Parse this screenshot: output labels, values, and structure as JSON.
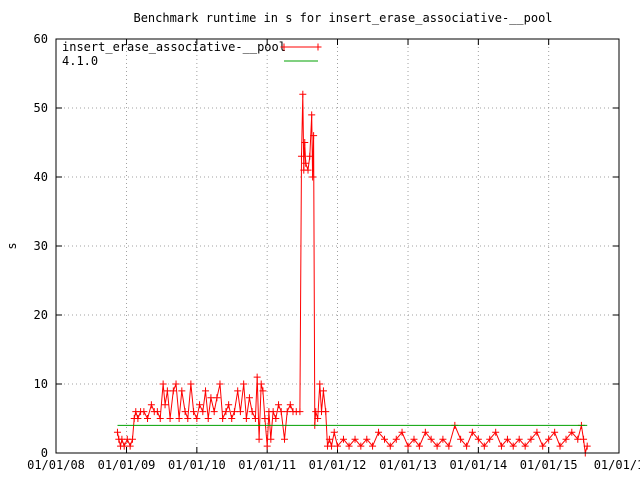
{
  "chart_data": {
    "type": "line",
    "title": "Benchmark runtime in s for insert_erase_associative-__pool",
    "xlabel": "",
    "ylabel": "s",
    "xlim": [
      "2008-01-01",
      "2016-01-01"
    ],
    "ylim": [
      0,
      60
    ],
    "y_ticks": [
      0,
      10,
      20,
      30,
      40,
      50,
      60
    ],
    "x_ticks": [
      {
        "date": "2008-01-01",
        "label": "01/01/08"
      },
      {
        "date": "2009-01-01",
        "label": "01/01/09"
      },
      {
        "date": "2010-01-01",
        "label": "01/01/10"
      },
      {
        "date": "2011-01-01",
        "label": "01/01/11"
      },
      {
        "date": "2012-01-01",
        "label": "01/01/12"
      },
      {
        "date": "2013-01-01",
        "label": "01/01/13"
      },
      {
        "date": "2014-01-01",
        "label": "01/01/14"
      },
      {
        "date": "2015-01-01",
        "label": "01/01/15"
      },
      {
        "date": "2016-01-01",
        "label": "01/01/1"
      }
    ],
    "grid": true,
    "legend_position": "top-left",
    "series": [
      {
        "name": "insert_erase_associative-__pool",
        "color": "#ff0000",
        "marker": "plus",
        "points": [
          [
            "2008-11-15",
            3
          ],
          [
            "2008-11-22",
            2
          ],
          [
            "2008-12-01",
            1
          ],
          [
            "2008-12-08",
            2
          ],
          [
            "2008-12-20",
            1
          ],
          [
            "2009-01-05",
            2
          ],
          [
            "2009-01-20",
            1
          ],
          [
            "2009-02-01",
            2
          ],
          [
            "2009-02-10",
            5
          ],
          [
            "2009-02-18",
            6
          ],
          [
            "2009-03-01",
            5
          ],
          [
            "2009-03-15",
            6
          ],
          [
            "2009-04-01",
            6
          ],
          [
            "2009-04-20",
            5
          ],
          [
            "2009-05-10",
            7
          ],
          [
            "2009-05-25",
            6
          ],
          [
            "2009-06-10",
            6
          ],
          [
            "2009-06-25",
            5
          ],
          [
            "2009-07-10",
            10
          ],
          [
            "2009-07-20",
            7
          ],
          [
            "2009-08-01",
            9
          ],
          [
            "2009-08-15",
            5
          ],
          [
            "2009-09-01",
            9
          ],
          [
            "2009-09-15",
            10
          ],
          [
            "2009-10-01",
            5
          ],
          [
            "2009-10-15",
            9
          ],
          [
            "2009-11-01",
            6
          ],
          [
            "2009-11-15",
            5
          ],
          [
            "2009-12-01",
            10
          ],
          [
            "2009-12-15",
            6
          ],
          [
            "2010-01-01",
            5
          ],
          [
            "2010-01-15",
            7
          ],
          [
            "2010-02-01",
            6
          ],
          [
            "2010-02-15",
            9
          ],
          [
            "2010-03-01",
            5
          ],
          [
            "2010-03-15",
            8
          ],
          [
            "2010-04-01",
            6
          ],
          [
            "2010-04-15",
            8
          ],
          [
            "2010-05-01",
            10
          ],
          [
            "2010-05-15",
            5
          ],
          [
            "2010-06-01",
            6
          ],
          [
            "2010-06-15",
            7
          ],
          [
            "2010-07-01",
            5
          ],
          [
            "2010-07-15",
            6
          ],
          [
            "2010-08-01",
            9
          ],
          [
            "2010-08-15",
            6
          ],
          [
            "2010-09-01",
            10
          ],
          [
            "2010-09-15",
            5
          ],
          [
            "2010-10-01",
            8
          ],
          [
            "2010-10-15",
            6
          ],
          [
            "2010-11-01",
            5
          ],
          [
            "2010-11-10",
            11
          ],
          [
            "2010-11-20",
            2
          ],
          [
            "2010-12-01",
            10
          ],
          [
            "2010-12-10",
            9
          ],
          [
            "2010-12-20",
            5
          ],
          [
            "2011-01-01",
            1
          ],
          [
            "2011-01-10",
            6
          ],
          [
            "2011-01-20",
            2
          ],
          [
            "2011-02-01",
            6
          ],
          [
            "2011-02-15",
            5
          ],
          [
            "2011-03-01",
            7
          ],
          [
            "2011-03-15",
            6
          ],
          [
            "2011-04-01",
            2
          ],
          [
            "2011-04-15",
            6
          ],
          [
            "2011-05-01",
            7
          ],
          [
            "2011-05-15",
            6
          ],
          [
            "2011-06-01",
            6
          ],
          [
            "2011-06-20",
            6
          ],
          [
            "2011-06-28",
            43
          ],
          [
            "2011-07-05",
            52
          ],
          [
            "2011-07-10",
            41
          ],
          [
            "2011-07-15",
            45
          ],
          [
            "2011-07-20",
            42
          ],
          [
            "2011-08-01",
            41
          ],
          [
            "2011-08-10",
            43
          ],
          [
            "2011-08-20",
            49
          ],
          [
            "2011-08-25",
            40
          ],
          [
            "2011-08-30",
            46
          ],
          [
            "2011-09-05",
            4
          ],
          [
            "2011-09-10",
            6
          ],
          [
            "2011-09-20",
            5
          ],
          [
            "2011-10-01",
            10
          ],
          [
            "2011-10-10",
            6
          ],
          [
            "2011-10-20",
            9
          ],
          [
            "2011-11-01",
            6
          ],
          [
            "2011-11-10",
            1
          ],
          [
            "2011-11-20",
            2
          ],
          [
            "2011-12-01",
            1
          ],
          [
            "2011-12-15",
            3
          ],
          [
            "2012-01-01",
            1
          ],
          [
            "2012-02-01",
            2
          ],
          [
            "2012-03-01",
            1
          ],
          [
            "2012-04-01",
            2
          ],
          [
            "2012-05-01",
            1
          ],
          [
            "2012-06-01",
            2
          ],
          [
            "2012-07-01",
            1
          ],
          [
            "2012-08-01",
            3
          ],
          [
            "2012-09-01",
            2
          ],
          [
            "2012-10-01",
            1
          ],
          [
            "2012-11-01",
            2
          ],
          [
            "2012-12-01",
            3
          ],
          [
            "2013-01-01",
            1
          ],
          [
            "2013-02-01",
            2
          ],
          [
            "2013-03-01",
            1
          ],
          [
            "2013-04-01",
            3
          ],
          [
            "2013-05-01",
            2
          ],
          [
            "2013-06-01",
            1
          ],
          [
            "2013-07-01",
            2
          ],
          [
            "2013-08-01",
            1
          ],
          [
            "2013-09-01",
            4
          ],
          [
            "2013-10-01",
            2
          ],
          [
            "2013-11-01",
            1
          ],
          [
            "2013-12-01",
            3
          ],
          [
            "2014-01-01",
            2
          ],
          [
            "2014-02-01",
            1
          ],
          [
            "2014-03-01",
            2
          ],
          [
            "2014-04-01",
            3
          ],
          [
            "2014-05-01",
            1
          ],
          [
            "2014-06-01",
            2
          ],
          [
            "2014-07-01",
            1
          ],
          [
            "2014-08-01",
            2
          ],
          [
            "2014-09-01",
            1
          ],
          [
            "2014-10-01",
            2
          ],
          [
            "2014-11-01",
            3
          ],
          [
            "2014-12-01",
            1
          ],
          [
            "2015-01-01",
            2
          ],
          [
            "2015-02-01",
            3
          ],
          [
            "2015-03-01",
            1
          ],
          [
            "2015-04-01",
            2
          ],
          [
            "2015-05-01",
            3
          ],
          [
            "2015-06-01",
            2
          ],
          [
            "2015-06-20",
            4
          ],
          [
            "2015-07-01",
            2
          ],
          [
            "2015-07-10",
            0
          ],
          [
            "2015-07-20",
            1
          ]
        ]
      },
      {
        "name": "4.1.0",
        "color": "#00a000",
        "marker": "none",
        "points": [
          [
            "2008-11-15",
            4
          ],
          [
            "2015-07-20",
            4
          ]
        ]
      }
    ]
  }
}
